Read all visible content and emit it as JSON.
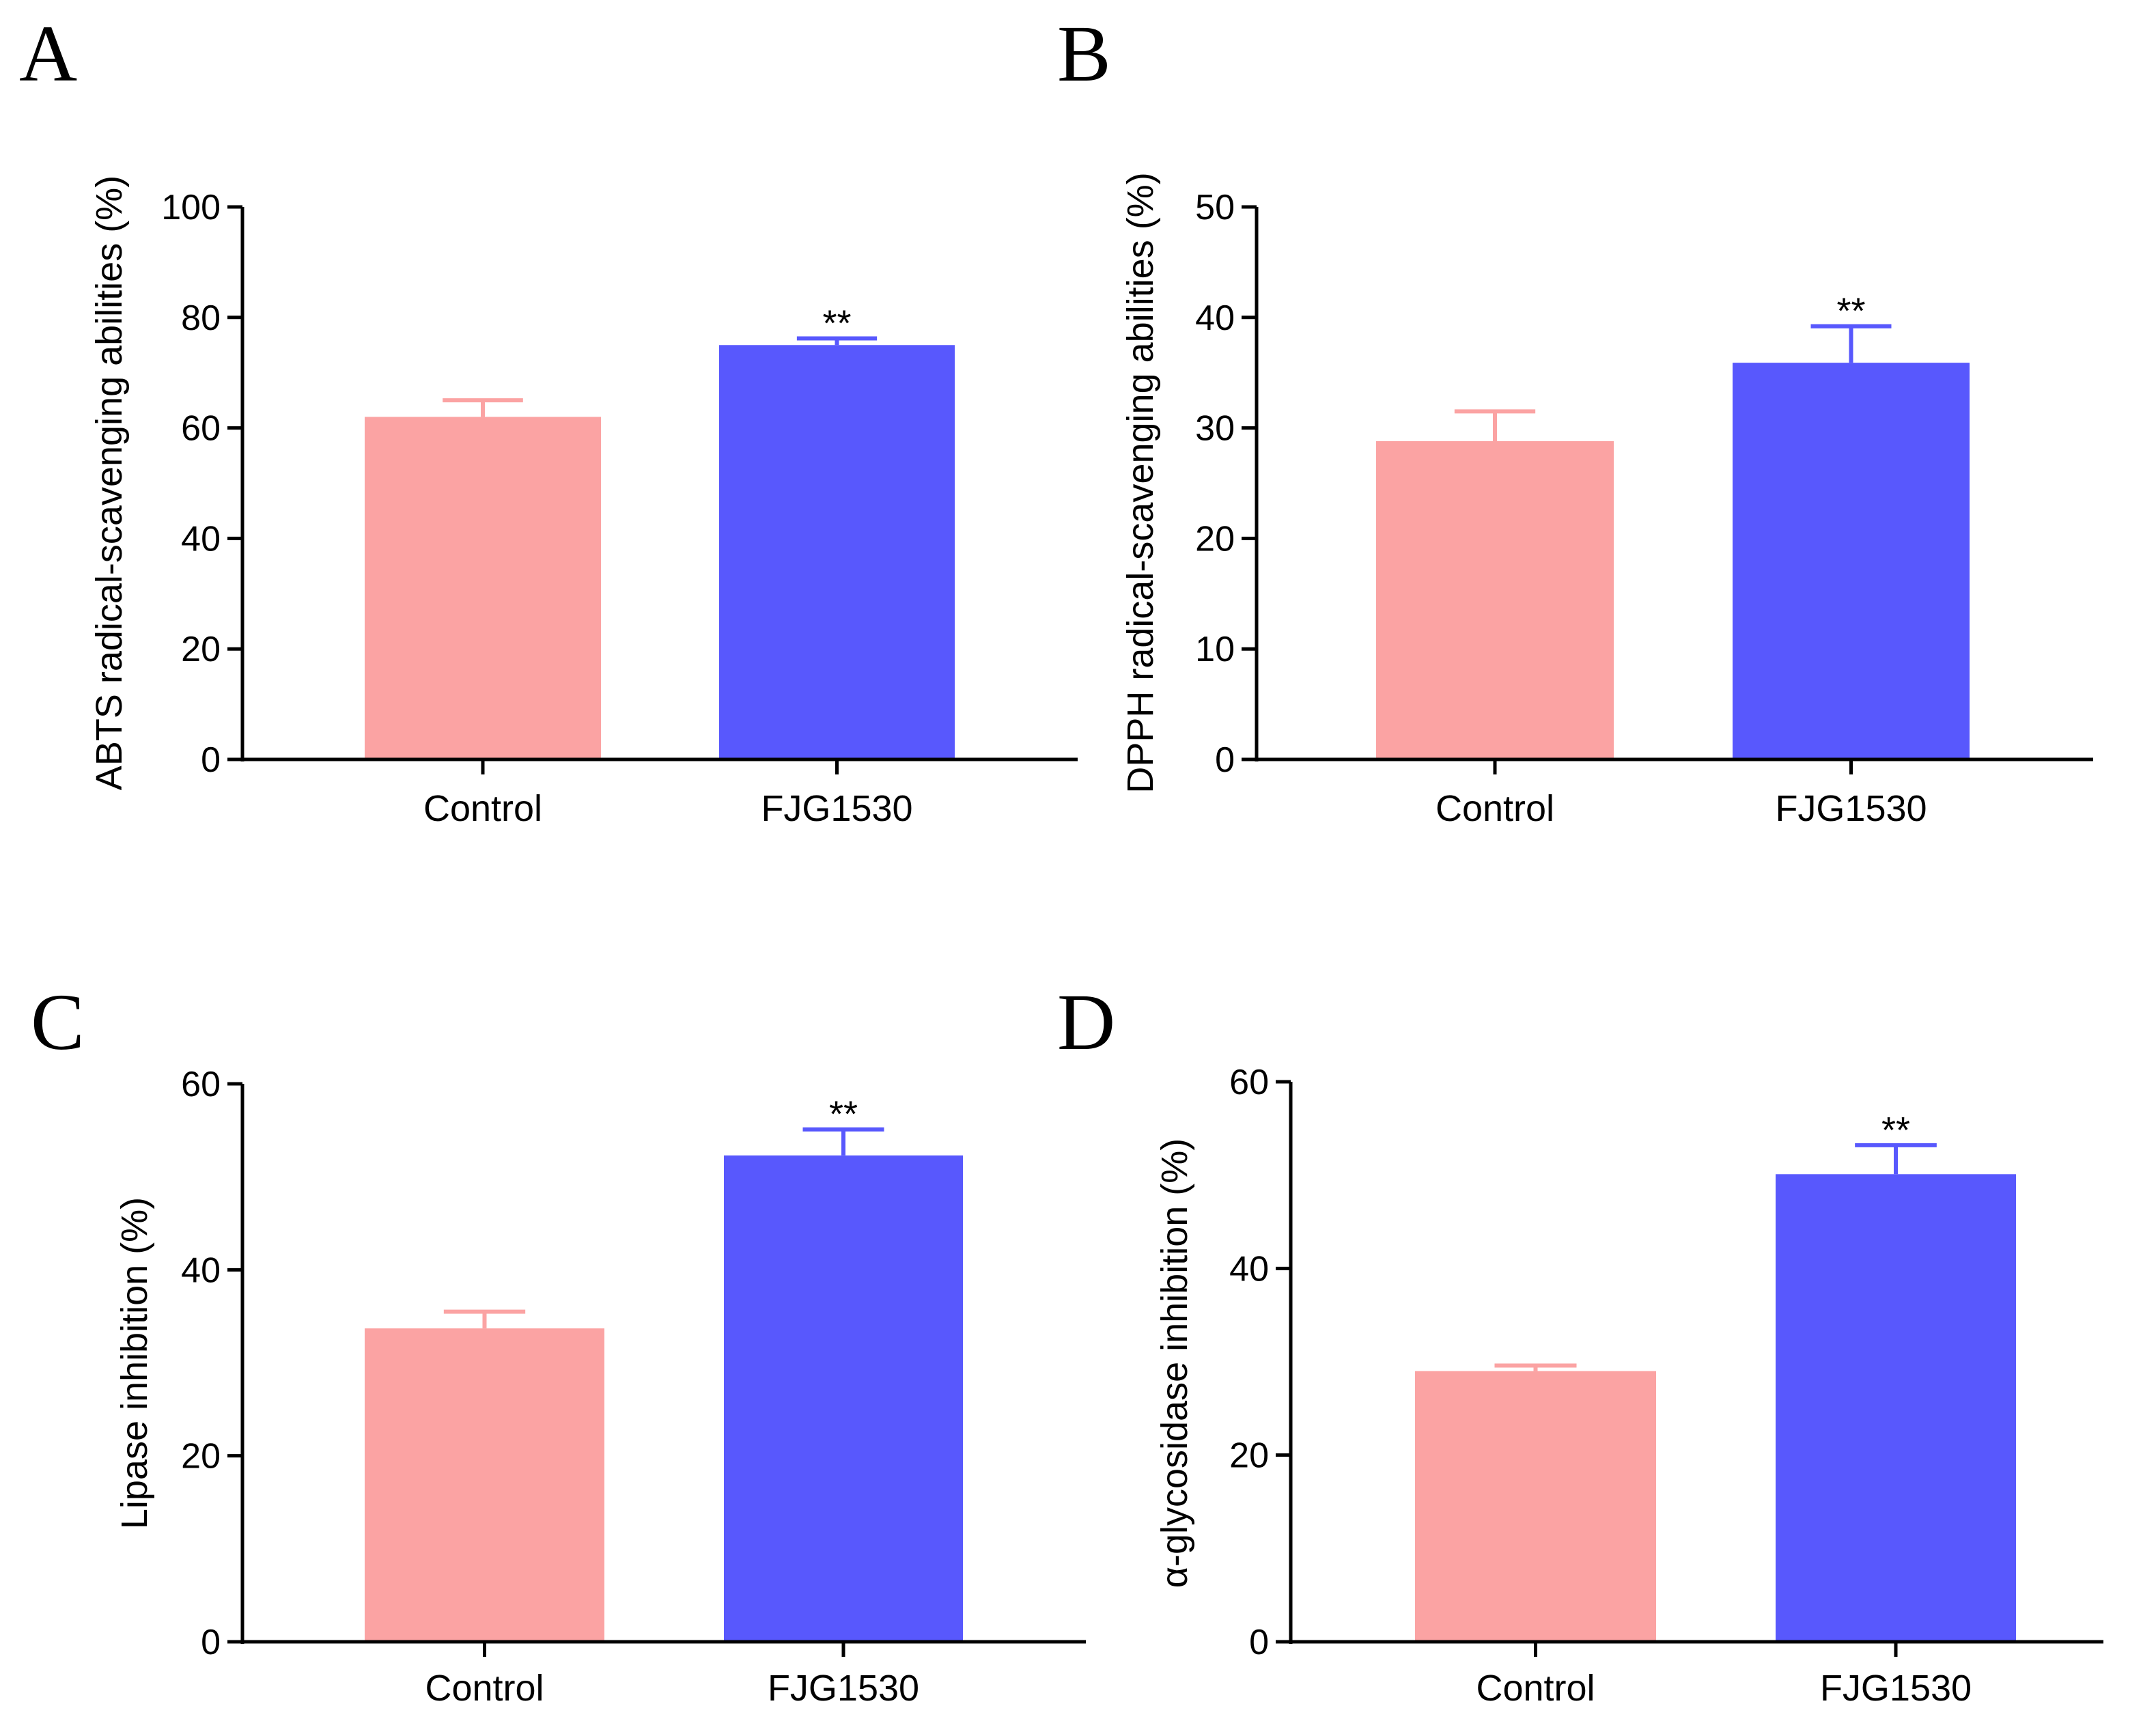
{
  "colors": {
    "control": "#FBA3A3",
    "treatment": "#5858FD",
    "axis": "#000000"
  },
  "chart_data": [
    {
      "type": "bar",
      "panel": "A",
      "categories": [
        "Control",
        "FJG1530"
      ],
      "values": [
        62,
        75
      ],
      "errors": [
        3,
        1.2
      ],
      "significance": [
        "",
        "**"
      ],
      "ylabel": "ABTS radical-scavenging abilities (%)",
      "ylim": [
        0,
        100
      ],
      "yticks": [
        0,
        20,
        40,
        60,
        80,
        100
      ]
    },
    {
      "type": "bar",
      "panel": "B",
      "categories": [
        "Control",
        "FJG1530"
      ],
      "values": [
        28.8,
        35.9
      ],
      "errors": [
        2.7,
        3.3
      ],
      "significance": [
        "",
        "**"
      ],
      "ylabel": "DPPH radical-scavenging abilities (%)",
      "ylim": [
        0,
        50
      ],
      "yticks": [
        0,
        10,
        20,
        30,
        40,
        50
      ]
    },
    {
      "type": "bar",
      "panel": "C",
      "categories": [
        "Control",
        "FJG1530"
      ],
      "values": [
        33.7,
        52.3
      ],
      "errors": [
        1.8,
        2.8
      ],
      "significance": [
        "",
        "**"
      ],
      "ylabel": "Lipase inhibition (%)",
      "ylim": [
        0,
        60
      ],
      "yticks": [
        0,
        20,
        40,
        60
      ]
    },
    {
      "type": "bar",
      "panel": "D",
      "categories": [
        "Control",
        "FJG1530"
      ],
      "values": [
        29,
        50.1
      ],
      "errors": [
        0.6,
        3.1
      ],
      "significance": [
        "",
        "**"
      ],
      "ylabel": "α-glycosidase inhibition (%)",
      "ylim": [
        0,
        60
      ],
      "yticks": [
        0,
        20,
        40,
        60
      ]
    }
  ]
}
